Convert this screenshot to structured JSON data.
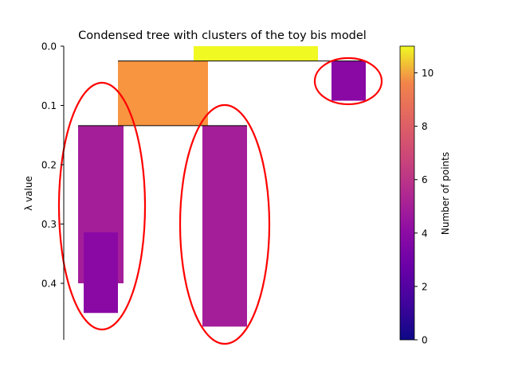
{
  "chart_data": {
    "type": "icicle",
    "title": "Condensed tree with clusters of the toy bis model",
    "ylabel": "λ value",
    "ylim": [
      0,
      0.5
    ],
    "y_inverted": true,
    "y_ticks": [
      0.0,
      0.1,
      0.2,
      0.3,
      0.4
    ],
    "y_tick_labels": [
      "0.0",
      "0.1",
      "0.2",
      "0.3",
      "0.4"
    ],
    "grid": false,
    "colormap": "plasma",
    "colorbar": {
      "label": "Number of points",
      "range": [
        0,
        11
      ],
      "ticks": [
        0,
        2,
        4,
        6,
        8,
        10
      ],
      "tick_labels": [
        "0",
        "2",
        "4",
        "6",
        "8",
        "10"
      ]
    },
    "nodes": [
      {
        "id": "root",
        "lambda_birth": 0.0,
        "lambda_death": 0.025,
        "points": 11,
        "color": "#f0f921"
      },
      {
        "id": "branch-left",
        "lambda_birth": 0.025,
        "lambda_death": 0.134,
        "points": 8,
        "color": "#f89540"
      },
      {
        "id": "leaf-right",
        "lambda_birth": 0.025,
        "lambda_death": 0.092,
        "points": 3,
        "color": "#8a09a5",
        "selected": true
      },
      {
        "id": "leaf-left",
        "lambda_birth": 0.134,
        "lambda_death": 0.4,
        "points": 4,
        "color": "#a41e9a",
        "selected": true
      },
      {
        "id": "leaf-left-inner",
        "lambda_birth": 0.314,
        "lambda_death": 0.45,
        "points": 3,
        "color": "#8a09a5"
      },
      {
        "id": "leaf-middle",
        "lambda_birth": 0.134,
        "lambda_death": 0.473,
        "points": 4,
        "color": "#a41e9a",
        "selected": true
      }
    ],
    "links": [
      {
        "lambda": 0.025,
        "children": [
          "branch-left",
          "leaf-right"
        ]
      },
      {
        "lambda": 0.134,
        "children": [
          "leaf-left",
          "leaf-middle"
        ]
      }
    ],
    "selection_color": "#ff0000"
  }
}
